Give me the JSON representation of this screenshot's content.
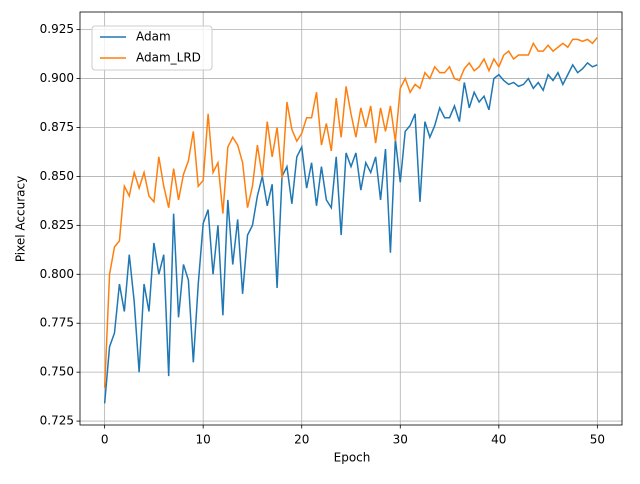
{
  "chart_data": {
    "type": "line",
    "xlabel": "Epoch",
    "ylabel": "Pixel Accuracy",
    "x": [
      0,
      0.5,
      1,
      1.5,
      2,
      2.5,
      3,
      3.5,
      4,
      4.5,
      5,
      5.5,
      6,
      6.5,
      7,
      7.5,
      8,
      8.5,
      9,
      9.5,
      10,
      10.5,
      11,
      11.5,
      12,
      12.5,
      13,
      13.5,
      14,
      14.5,
      15,
      15.5,
      16,
      16.5,
      17,
      17.5,
      18,
      18.5,
      19,
      19.5,
      20,
      20.5,
      21,
      21.5,
      22,
      22.5,
      23,
      23.5,
      24,
      24.5,
      25,
      25.5,
      26,
      26.5,
      27,
      27.5,
      28,
      28.5,
      29,
      29.5,
      30,
      30.5,
      31,
      31.5,
      32,
      32.5,
      33,
      33.5,
      34,
      34.5,
      35,
      35.5,
      36,
      36.5,
      37,
      37.5,
      38,
      38.5,
      39,
      39.5,
      40,
      40.5,
      41,
      41.5,
      42,
      42.5,
      43,
      43.5,
      44,
      44.5,
      45,
      45.5,
      46,
      46.5,
      47,
      47.5,
      48,
      48.5,
      49,
      49.5,
      50
    ],
    "series": [
      {
        "name": "Adam",
        "color": "#1f77b4",
        "values": [
          0.734,
          0.763,
          0.77,
          0.795,
          0.781,
          0.81,
          0.786,
          0.75,
          0.795,
          0.781,
          0.816,
          0.8,
          0.81,
          0.748,
          0.831,
          0.778,
          0.805,
          0.797,
          0.755,
          0.795,
          0.826,
          0.833,
          0.8,
          0.825,
          0.779,
          0.838,
          0.805,
          0.828,
          0.79,
          0.82,
          0.825,
          0.84,
          0.85,
          0.835,
          0.846,
          0.793,
          0.85,
          0.855,
          0.836,
          0.86,
          0.865,
          0.844,
          0.857,
          0.835,
          0.855,
          0.838,
          0.834,
          0.86,
          0.82,
          0.862,
          0.855,
          0.862,
          0.843,
          0.857,
          0.852,
          0.86,
          0.838,
          0.864,
          0.811,
          0.869,
          0.847,
          0.873,
          0.876,
          0.882,
          0.837,
          0.878,
          0.87,
          0.876,
          0.885,
          0.88,
          0.88,
          0.886,
          0.878,
          0.898,
          0.885,
          0.893,
          0.888,
          0.891,
          0.884,
          0.9,
          0.902,
          0.899,
          0.897,
          0.898,
          0.896,
          0.897,
          0.9,
          0.895,
          0.898,
          0.894,
          0.902,
          0.899,
          0.903,
          0.897,
          0.902,
          0.907,
          0.903,
          0.905,
          0.908,
          0.906,
          0.907
        ]
      },
      {
        "name": "Adam_LRD",
        "color": "#ff7f0e",
        "values": [
          0.742,
          0.8,
          0.814,
          0.817,
          0.845,
          0.84,
          0.852,
          0.844,
          0.852,
          0.84,
          0.837,
          0.86,
          0.845,
          0.834,
          0.854,
          0.838,
          0.851,
          0.858,
          0.873,
          0.845,
          0.848,
          0.882,
          0.852,
          0.857,
          0.831,
          0.865,
          0.87,
          0.866,
          0.857,
          0.834,
          0.845,
          0.866,
          0.85,
          0.878,
          0.86,
          0.875,
          0.849,
          0.888,
          0.874,
          0.868,
          0.872,
          0.88,
          0.88,
          0.893,
          0.866,
          0.877,
          0.863,
          0.89,
          0.87,
          0.896,
          0.882,
          0.87,
          0.885,
          0.875,
          0.886,
          0.867,
          0.885,
          0.873,
          0.886,
          0.868,
          0.895,
          0.9,
          0.893,
          0.897,
          0.895,
          0.903,
          0.9,
          0.906,
          0.903,
          0.903,
          0.906,
          0.9,
          0.899,
          0.905,
          0.908,
          0.904,
          0.906,
          0.91,
          0.904,
          0.91,
          0.906,
          0.912,
          0.914,
          0.91,
          0.912,
          0.912,
          0.912,
          0.918,
          0.914,
          0.914,
          0.917,
          0.914,
          0.916,
          0.918,
          0.916,
          0.92,
          0.92,
          0.919,
          0.92,
          0.918,
          0.921
        ]
      }
    ],
    "xlim": [
      -2.5,
      52.5
    ],
    "ylim": [
      0.723,
      0.934
    ],
    "xticks": [
      0,
      10,
      20,
      30,
      40,
      50
    ],
    "yticks": [
      0.725,
      {
        "value": 0.75,
        "label": "0.750"
      },
      0.775,
      {
        "value": 0.8,
        "label": "0.800"
      },
      0.825,
      {
        "value": 0.85,
        "label": "0.850"
      },
      0.875,
      {
        "value": 0.9,
        "label": "0.900"
      },
      0.925
    ],
    "grid": true,
    "legend": "upper left"
  }
}
